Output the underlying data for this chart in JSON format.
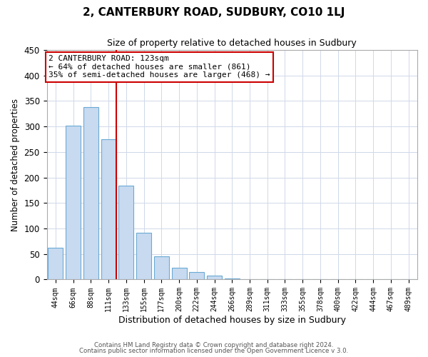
{
  "title": "2, CANTERBURY ROAD, SUDBURY, CO10 1LJ",
  "subtitle": "Size of property relative to detached houses in Sudbury",
  "xlabel": "Distribution of detached houses by size in Sudbury",
  "ylabel": "Number of detached properties",
  "bin_labels": [
    "44sqm",
    "66sqm",
    "88sqm",
    "111sqm",
    "133sqm",
    "155sqm",
    "177sqm",
    "200sqm",
    "222sqm",
    "244sqm",
    "266sqm",
    "289sqm",
    "311sqm",
    "333sqm",
    "355sqm",
    "378sqm",
    "400sqm",
    "422sqm",
    "444sqm",
    "467sqm",
    "489sqm"
  ],
  "bar_values": [
    62,
    302,
    338,
    275,
    184,
    91,
    45,
    23,
    15,
    7,
    2,
    1,
    1,
    0,
    0,
    0,
    0,
    0,
    1,
    0,
    1
  ],
  "bar_color": "#c8daf0",
  "bar_edge_color": "#6aaad4",
  "marker_line_color": "#cc0000",
  "annotation_title": "2 CANTERBURY ROAD: 123sqm",
  "annotation_line1": "← 64% of detached houses are smaller (861)",
  "annotation_line2": "35% of semi-detached houses are larger (468) →",
  "annotation_box_color": "#ffffff",
  "annotation_box_edge": "#cc0000",
  "ylim": [
    0,
    450
  ],
  "footer1": "Contains HM Land Registry data © Crown copyright and database right 2024.",
  "footer2": "Contains public sector information licensed under the Open Government Licence v 3.0.",
  "background_color": "#ffffff",
  "grid_color": "#d0d8e8",
  "figsize": [
    6.0,
    5.0
  ],
  "dpi": 100
}
